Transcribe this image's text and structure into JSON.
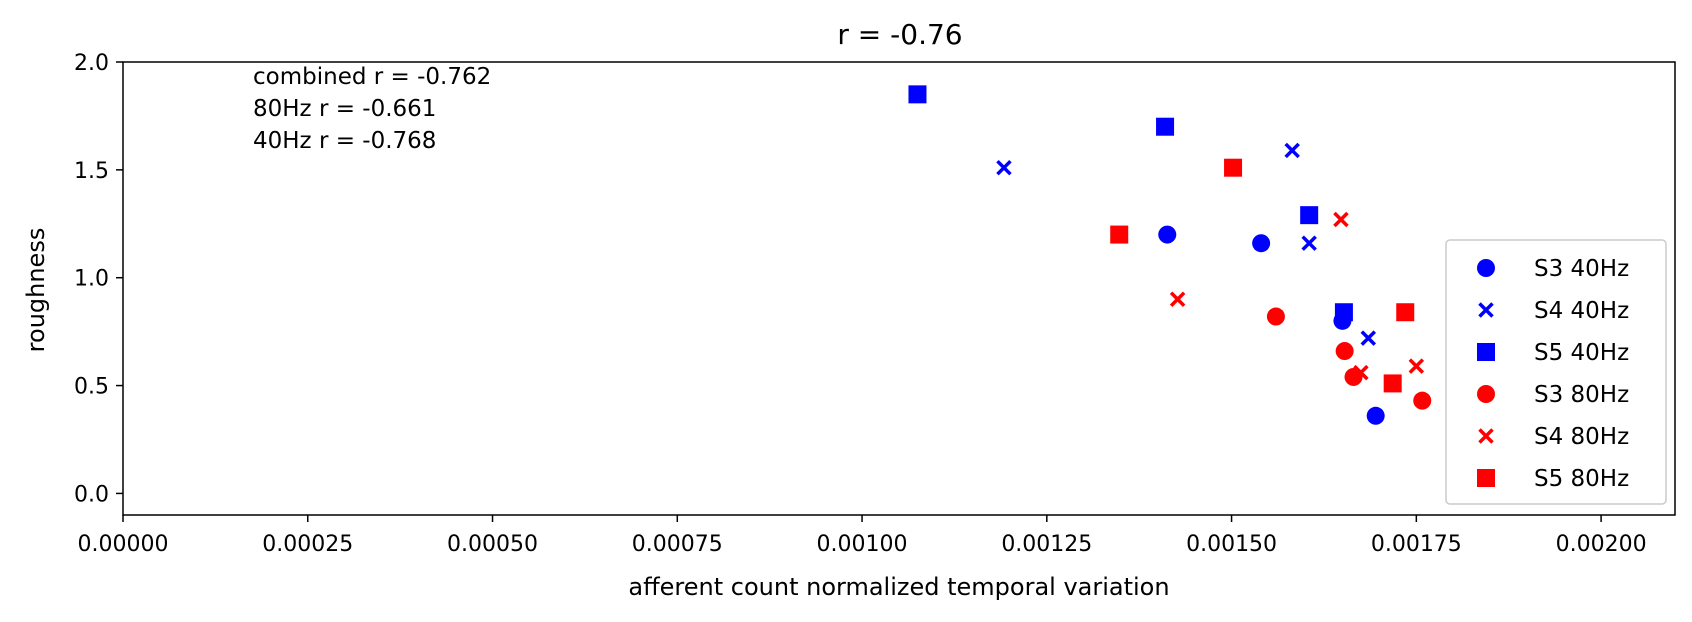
{
  "chart_data": {
    "type": "scatter",
    "title": "r = -0.76",
    "xlabel": "afferent count normalized temporal variation",
    "ylabel": "roughness",
    "xlim": [
      0,
      0.0021
    ],
    "ylim": [
      -0.1,
      2.0
    ],
    "xticks": [
      "0.00000",
      "0.00025",
      "0.00050",
      "0.00075",
      "0.00100",
      "0.00125",
      "0.00150",
      "0.00175",
      "0.00200"
    ],
    "yticks": [
      "0.0",
      "0.5",
      "1.0",
      "1.5",
      "2.0"
    ],
    "grid": false,
    "legend_position": "lower right",
    "annotations": [
      "combined r = -0.762",
      "80Hz r = -0.661",
      "40Hz r = -0.768"
    ],
    "series": [
      {
        "name": "S3 40Hz",
        "color": "#0000ff",
        "marker": "circle",
        "points": [
          [
            0.001413,
            1.2
          ],
          [
            0.00154,
            1.16
          ],
          [
            0.00165,
            0.8
          ],
          [
            0.001695,
            0.36
          ]
        ]
      },
      {
        "name": "S4 40Hz",
        "color": "#0000ff",
        "marker": "x",
        "points": [
          [
            0.001192,
            1.51
          ],
          [
            0.001582,
            1.59
          ],
          [
            0.001605,
            1.16
          ],
          [
            0.001685,
            0.72
          ]
        ]
      },
      {
        "name": "S5 40Hz",
        "color": "#0000ff",
        "marker": "square",
        "points": [
          [
            0.001075,
            1.85
          ],
          [
            0.00141,
            1.7
          ],
          [
            0.001605,
            1.29
          ],
          [
            0.001652,
            0.84
          ]
        ]
      },
      {
        "name": "S3 80Hz",
        "color": "#ff0000",
        "marker": "circle",
        "points": [
          [
            0.00156,
            0.82
          ],
          [
            0.001653,
            0.66
          ],
          [
            0.001665,
            0.54
          ],
          [
            0.001758,
            0.43
          ]
        ]
      },
      {
        "name": "S4 80Hz",
        "color": "#ff0000",
        "marker": "x",
        "points": [
          [
            0.001427,
            0.9
          ],
          [
            0.001648,
            1.27
          ],
          [
            0.001675,
            0.56
          ],
          [
            0.00175,
            0.59
          ]
        ]
      },
      {
        "name": "S5 80Hz",
        "color": "#ff0000",
        "marker": "square",
        "points": [
          [
            0.001348,
            1.2
          ],
          [
            0.001502,
            1.51
          ],
          [
            0.001718,
            0.51
          ],
          [
            0.001735,
            0.84
          ]
        ]
      }
    ]
  }
}
